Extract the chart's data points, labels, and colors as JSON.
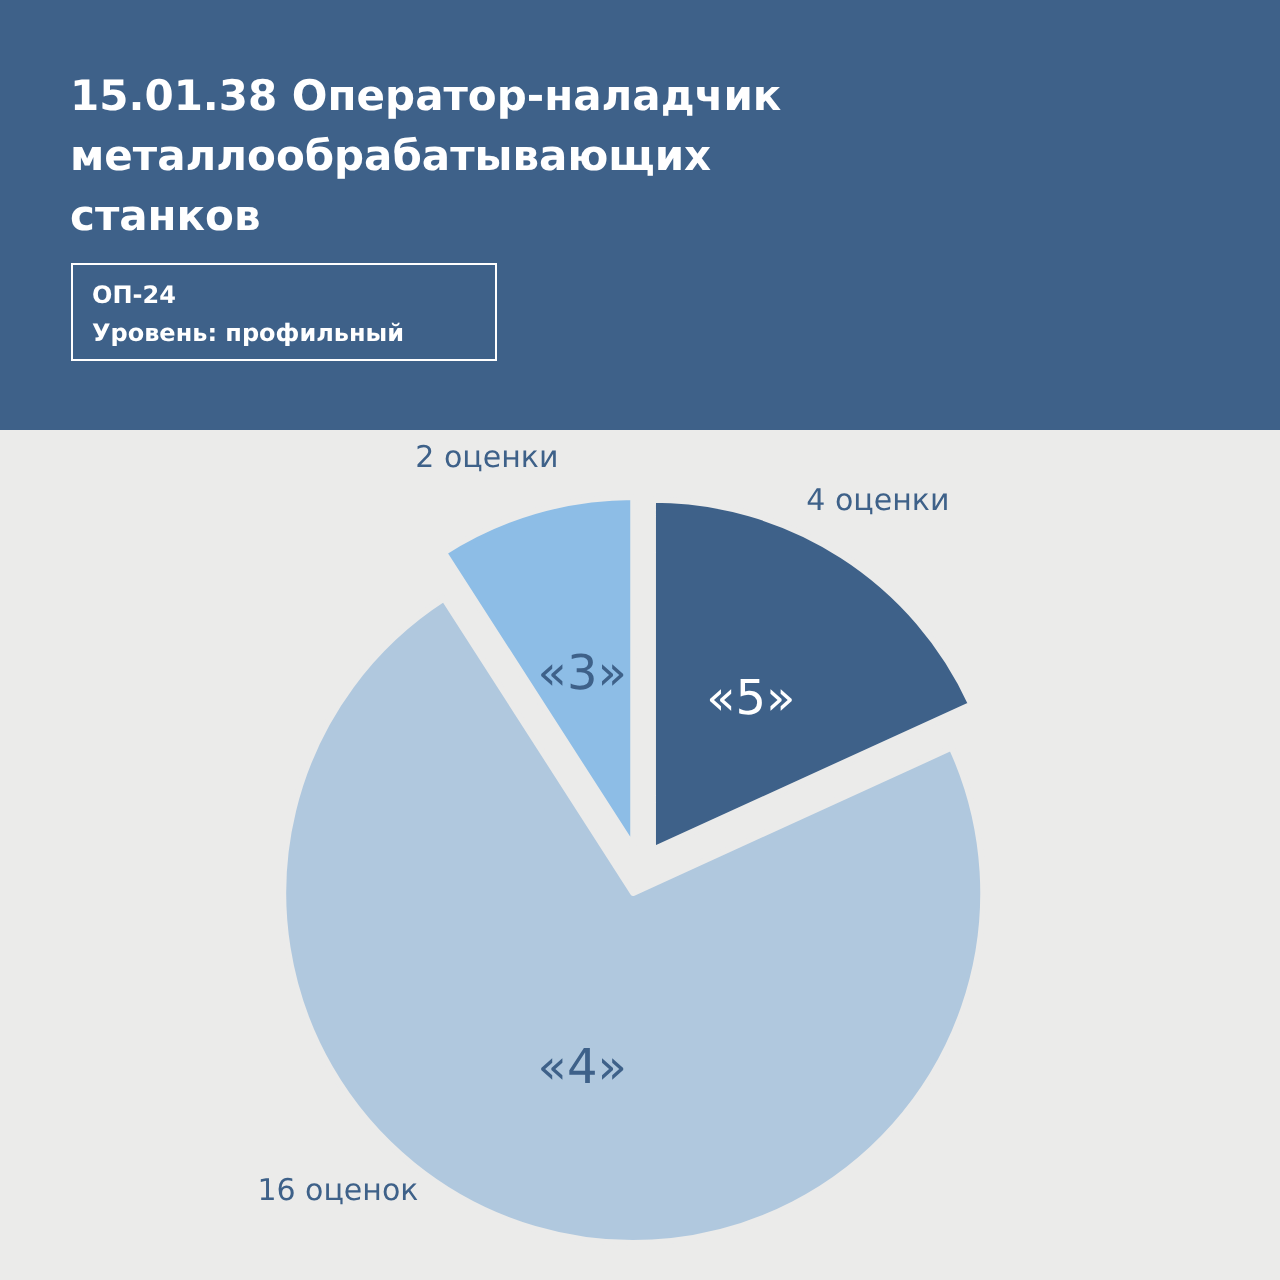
{
  "chart_data": {
    "type": "pie",
    "title": "15.01.38 Оператор-наладчик металлообрабатывающих станков",
    "subtitle": "ОП-24\nУровень: профильный",
    "categories": [
      "«5»",
      "«4»",
      "«3»"
    ],
    "values": [
      4,
      16,
      2
    ],
    "colors": [
      "#3e6189",
      "#b0c8de",
      "#8dbde6"
    ],
    "value_labels": [
      "4 оценки",
      "16 оценок",
      "2 оценки"
    ],
    "legend": false
  }
}
